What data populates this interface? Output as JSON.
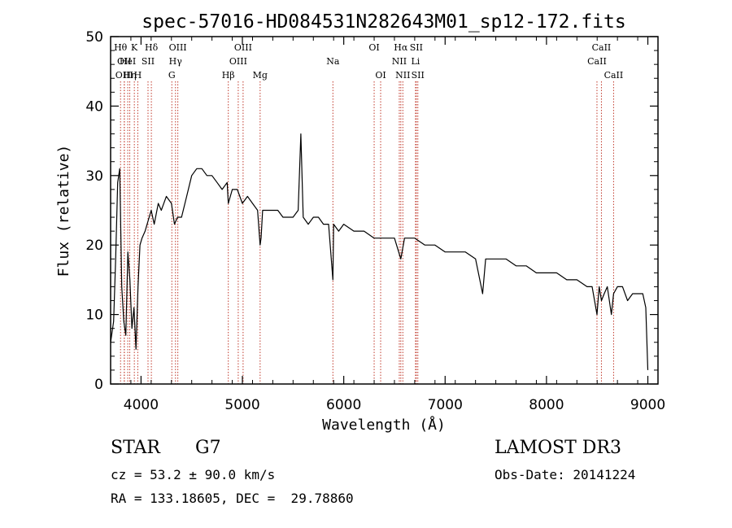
{
  "chart_data": {
    "type": "line",
    "title": "spec-57016-HD084531N282643M01_sp12-172.fits",
    "xlabel": "Wavelength (Å)",
    "ylabel": "Flux (relative)",
    "xlim": [
      3700,
      9100
    ],
    "ylim": [
      0,
      50
    ],
    "xticks": [
      4000,
      5000,
      6000,
      7000,
      8000,
      9000
    ],
    "yticks": [
      0,
      10,
      20,
      30,
      40,
      50
    ],
    "grid": false,
    "series": [
      {
        "name": "spectrum",
        "x": [
          3700,
          3730,
          3750,
          3770,
          3790,
          3810,
          3830,
          3850,
          3870,
          3890,
          3910,
          3930,
          3950,
          3970,
          3990,
          4010,
          4040,
          4080,
          4100,
          4130,
          4170,
          4200,
          4250,
          4300,
          4330,
          4360,
          4400,
          4450,
          4500,
          4550,
          4600,
          4650,
          4700,
          4750,
          4800,
          4850,
          4861,
          4900,
          4950,
          5000,
          5050,
          5100,
          5150,
          5175,
          5184,
          5200,
          5250,
          5300,
          5350,
          5400,
          5450,
          5500,
          5550,
          5577,
          5600,
          5650,
          5700,
          5750,
          5800,
          5850,
          5893,
          5900,
          5950,
          6000,
          6100,
          6200,
          6300,
          6400,
          6500,
          6563,
          6600,
          6700,
          6800,
          6900,
          7000,
          7100,
          7200,
          7300,
          7370,
          7400,
          7500,
          7600,
          7700,
          7800,
          7900,
          8000,
          8100,
          8200,
          8300,
          8400,
          8450,
          8498,
          8520,
          8542,
          8570,
          8600,
          8640,
          8662,
          8700,
          8750,
          8800,
          8850,
          8900,
          8950,
          8980,
          9000
        ],
        "values": [
          6,
          9,
          18,
          29,
          31,
          14,
          9,
          7,
          19,
          15,
          8,
          11,
          5,
          14,
          20,
          21,
          22,
          24,
          25,
          23,
          26,
          25,
          27,
          26,
          23,
          24,
          24,
          27,
          30,
          31,
          31,
          30,
          30,
          29,
          28,
          29,
          26,
          28,
          28,
          26,
          27,
          26,
          25,
          20,
          21,
          25,
          25,
          25,
          25,
          24,
          24,
          24,
          25,
          36,
          24,
          23,
          24,
          24,
          23,
          23,
          15,
          23,
          22,
          23,
          22,
          22,
          21,
          21,
          21,
          18,
          21,
          21,
          20,
          20,
          19,
          19,
          19,
          18,
          13,
          18,
          18,
          18,
          17,
          17,
          16,
          16,
          16,
          15,
          15,
          14,
          14,
          10,
          14,
          12,
          13,
          14,
          10,
          13,
          14,
          14,
          12,
          13,
          13,
          13,
          11,
          2
        ]
      }
    ],
    "lines": [
      {
        "x": 3798,
        "label": "Hθ",
        "row": 1
      },
      {
        "x": 3835,
        "label": "OII",
        "row": 2
      },
      {
        "x": 3835,
        "label": "OIII",
        "row": 3
      },
      {
        "x": 3869,
        "label": "HeI",
        "row": 2
      },
      {
        "x": 3889,
        "label": "Hη",
        "row": 3
      },
      {
        "x": 3934,
        "label": "K",
        "row": 1
      },
      {
        "x": 3968,
        "label": "H",
        "row": 3
      },
      {
        "x": 4069,
        "label": "SII",
        "row": 2
      },
      {
        "x": 4102,
        "label": "Hδ",
        "row": 1
      },
      {
        "x": 4304,
        "label": "G",
        "row": 3
      },
      {
        "x": 4340,
        "label": "Hγ",
        "row": 2
      },
      {
        "x": 4363,
        "label": "OIII",
        "row": 1
      },
      {
        "x": 4861,
        "label": "Hβ",
        "row": 3
      },
      {
        "x": 4959,
        "label": "OIII",
        "row": 2
      },
      {
        "x": 5007,
        "label": "OIII",
        "row": 1
      },
      {
        "x": 5175,
        "label": "Mg",
        "row": 3
      },
      {
        "x": 5893,
        "label": "Na",
        "row": 2
      },
      {
        "x": 6300,
        "label": "OI",
        "row": 1
      },
      {
        "x": 6364,
        "label": "OI",
        "row": 3
      },
      {
        "x": 6548,
        "label": "NII",
        "row": 2
      },
      {
        "x": 6563,
        "label": "Hα",
        "row": 1
      },
      {
        "x": 6583,
        "label": "NII",
        "row": 3
      },
      {
        "x": 6708,
        "label": "Li",
        "row": 2
      },
      {
        "x": 6716,
        "label": "SII",
        "row": 1
      },
      {
        "x": 6731,
        "label": "SII",
        "row": 3
      },
      {
        "x": 8498,
        "label": "CaII",
        "row": 2
      },
      {
        "x": 8542,
        "label": "CaII",
        "row": 1
      },
      {
        "x": 8662,
        "label": "CaII",
        "row": 3
      }
    ]
  },
  "info": {
    "object_class": "STAR",
    "subclass": "G7",
    "survey": "LAMOST DR3",
    "cz": "cz = 53.2 ± 90.0 km/s",
    "obs_date": "Obs-Date: 20141224",
    "coords": "RA = 133.18605, DEC =  29.78860"
  },
  "colors": {
    "line_markers": "#c0392b",
    "spectrum": "#000000"
  }
}
